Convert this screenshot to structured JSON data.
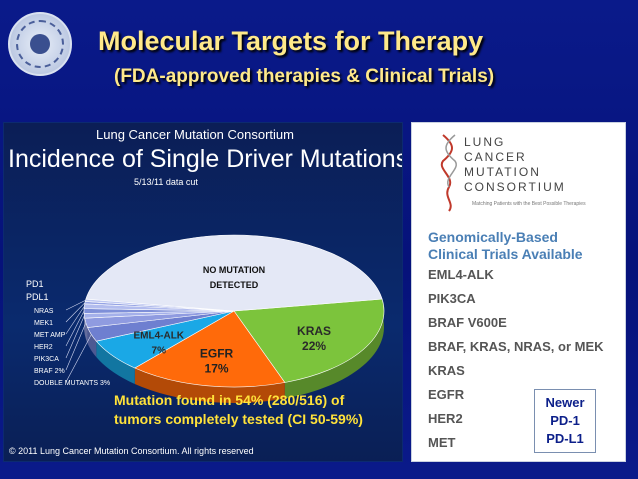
{
  "slide": {
    "title": "Molecular Targets for Therapy",
    "subtitle": "(FDA-approved therapies & Clinical Trials)"
  },
  "chart_data": {
    "type": "pie",
    "source_line": "Lung Cancer Mutation Consortium",
    "title": "Incidence of Single Driver Mutations",
    "date_note": "5/13/11 data cut",
    "slices": [
      {
        "label": "KRAS",
        "value": 22,
        "value_label": "22%",
        "color": "#7cc43c"
      },
      {
        "label": "EGFR",
        "value": 17,
        "value_label": "17%",
        "color": "#ff6a0a"
      },
      {
        "label": "EML4-ALK",
        "value": 7,
        "value_label": "7%",
        "color": "#1aa8e6"
      },
      {
        "label": "DOUBLE MUTANTS",
        "value": 3,
        "value_label": "3%",
        "color": "#6e7fd0"
      },
      {
        "label": "BRAF",
        "value": 2,
        "value_label": "2%",
        "color": "#8f9be0"
      },
      {
        "label": "PIK3CA",
        "value": 1,
        "value_label": "",
        "color": "#a4b0ea"
      },
      {
        "label": "HER2",
        "value": 1,
        "value_label": "",
        "color": "#7e8fd8"
      },
      {
        "label": "MET AMP",
        "value": 1,
        "value_label": "",
        "color": "#b2bcee"
      },
      {
        "label": "MEK1",
        "value": 0.5,
        "value_label": "",
        "color": "#96a4e4"
      },
      {
        "label": "NRAS",
        "value": 0.5,
        "value_label": "",
        "color": "#c0c9f2"
      },
      {
        "label": "NO MUTATION DETECTED",
        "value": 45,
        "value_label": "",
        "color": "#e4e8f6"
      }
    ],
    "annotation": [
      "Mutation found in 54% (280/516) of",
      "tumors completely tested (CI 50-59%)"
    ],
    "copyright": "© 2011 Lung Cancer Mutation Consortium.  All rights reserved"
  },
  "added_labels": {
    "pd1": "PD1",
    "pdl1": "PDL1"
  },
  "trials": {
    "logo_lines": [
      "LUNG",
      "CANCER",
      "MUTATION",
      "CONSORTIUM"
    ],
    "tagline": "Matching Patients with the Best Possible Therapies",
    "heading_line1": "Genomically-Based",
    "heading_line2": "Clinical Trials Available",
    "items": [
      "EML4-ALK",
      "PIK3CA",
      "BRAF V600E",
      "BRAF, KRAS, NRAS, or MEK",
      "KRAS",
      "EGFR",
      "HER2",
      "MET"
    ],
    "newer": [
      "Newer",
      "PD-1",
      "PD-L1"
    ]
  }
}
